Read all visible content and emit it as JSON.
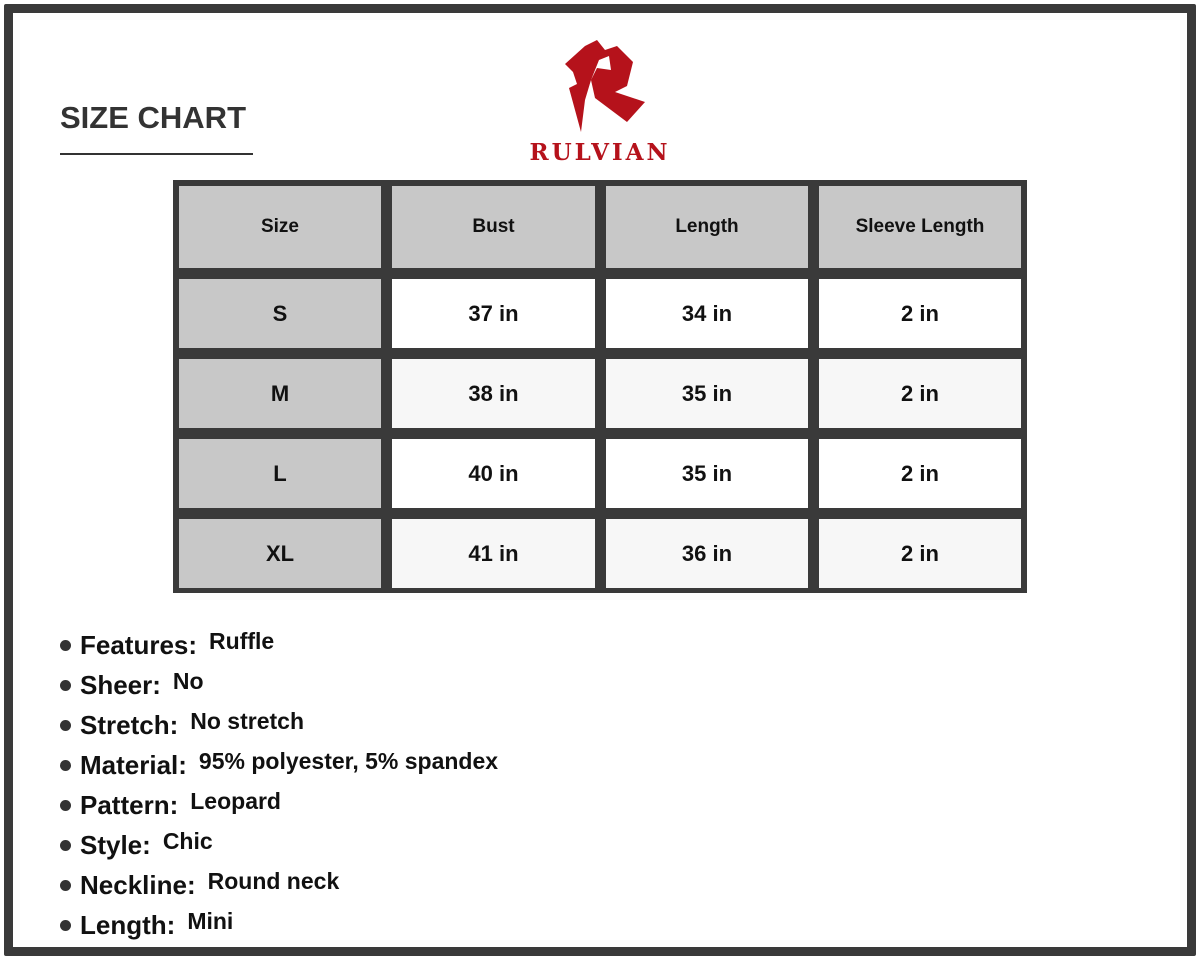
{
  "title": "SIZE CHART",
  "brand": {
    "name": "RULVIAN",
    "color": "#b5121b"
  },
  "table": {
    "headers": [
      "Size",
      "Bust",
      "Length",
      "Sleeve Length"
    ],
    "rows": [
      [
        "S",
        "37 in",
        "34 in",
        "2 in"
      ],
      [
        "M",
        "38 in",
        "35 in",
        "2 in"
      ],
      [
        "L",
        "40 in",
        "35 in",
        "2 in"
      ],
      [
        "XL",
        "41 in",
        "36 in",
        "2 in"
      ]
    ]
  },
  "specs": [
    {
      "key": "Features:",
      "value": "Ruffle"
    },
    {
      "key": "Sheer:",
      "value": "No"
    },
    {
      "key": "Stretch:",
      "value": "No stretch"
    },
    {
      "key": "Material:",
      "value": "95% polyester, 5% spandex"
    },
    {
      "key": "Pattern:",
      "value": "Leopard"
    },
    {
      "key": "Style:",
      "value": "Chic"
    },
    {
      "key": "Neckline:",
      "value": "Round neck"
    },
    {
      "key": "Length:",
      "value": "Mini"
    }
  ]
}
